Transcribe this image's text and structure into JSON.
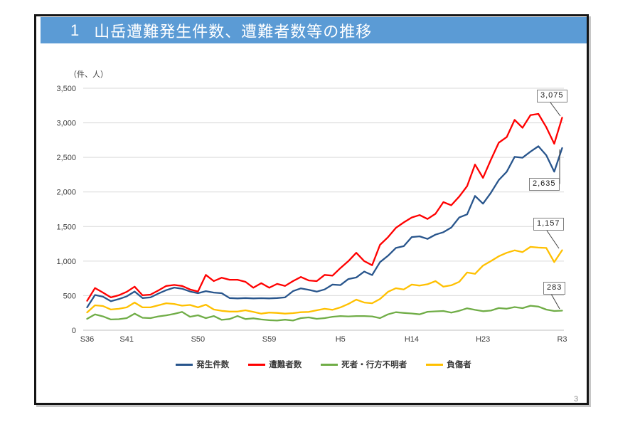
{
  "page": {
    "number": "3"
  },
  "header": {
    "index": "1",
    "title": "山岳遭難発生件数、遭難者数等の推移",
    "bg_color": "#5B9BD5",
    "text_color": "#FFFFFF"
  },
  "chart_data": {
    "type": "line",
    "title": "山岳遭難発生件数、遭難者数等の推移",
    "unit_label": "（件、人）",
    "xlabel": "",
    "ylabel": "件・人",
    "ylim": [
      0,
      3500
    ],
    "ytick_step": 500,
    "ytick_labels": [
      "0",
      "500",
      "1,000",
      "1,500",
      "2,000",
      "2,500",
      "3,000",
      "3,500"
    ],
    "grid": true,
    "legend_position": "bottom",
    "x_years": {
      "start": 1961,
      "end": 2021,
      "count": 61
    },
    "xticks": [
      {
        "label": "S36",
        "index": 0
      },
      {
        "label": "S41",
        "index": 5
      },
      {
        "label": "S50",
        "index": 14
      },
      {
        "label": "S59",
        "index": 23
      },
      {
        "label": "H5",
        "index": 32
      },
      {
        "label": "H14",
        "index": 41
      },
      {
        "label": "H23",
        "index": 50
      },
      {
        "label": "R3",
        "index": 60
      }
    ],
    "series": [
      {
        "key": "incidents",
        "name": "発生件数",
        "color": "#28558C",
        "values": [
          330,
          510,
          485,
          420,
          450,
          490,
          560,
          465,
          475,
          530,
          580,
          617,
          600,
          560,
          535,
          565,
          545,
          535,
          465,
          460,
          465,
          460,
          463,
          460,
          465,
          475,
          565,
          605,
          585,
          558,
          590,
          660,
          653,
          740,
          763,
          848,
          798,
          985,
          1077,
          1190,
          1216,
          1348,
          1358,
          1321,
          1382,
          1417,
          1484,
          1631,
          1676,
          1942,
          1830,
          1988,
          2172,
          2293,
          2508,
          2495,
          2583,
          2661,
          2531,
          2294,
          2635
        ]
      },
      {
        "key": "victims",
        "name": "遭難者数",
        "color": "#FF0000",
        "values": [
          425,
          610,
          545,
          475,
          505,
          555,
          630,
          505,
          515,
          575,
          640,
          655,
          640,
          590,
          560,
          800,
          710,
          760,
          730,
          730,
          700,
          615,
          680,
          615,
          670,
          640,
          710,
          770,
          720,
          710,
          800,
          790,
          900,
          1000,
          1120,
          1000,
          940,
          1235,
          1345,
          1480,
          1560,
          1631,
          1666,
          1609,
          1684,
          1853,
          1808,
          1933,
          2085,
          2396,
          2204,
          2465,
          2713,
          2794,
          3043,
          2929,
          3111,
          3129,
          2937,
          2697,
          3075
        ]
      },
      {
        "key": "deaths-missing",
        "name": "死者・行方不明者",
        "color": "#70AD47",
        "values": [
          165,
          230,
          200,
          155,
          160,
          175,
          240,
          180,
          175,
          200,
          215,
          237,
          265,
          195,
          216,
          175,
          205,
          150,
          162,
          205,
          162,
          172,
          155,
          145,
          140,
          152,
          140,
          175,
          185,
          165,
          175,
          195,
          205,
          200,
          205,
          205,
          200,
          175,
          230,
          260,
          250,
          242,
          230,
          267,
          273,
          278,
          254,
          281,
          317,
          294,
          275,
          284,
          320,
          311,
          335,
          319,
          354,
          342,
          299,
          278,
          283
        ]
      },
      {
        "key": "injured",
        "name": "負傷者",
        "color": "#FFC000",
        "values": [
          257,
          360,
          350,
          300,
          310,
          330,
          400,
          330,
          330,
          360,
          390,
          380,
          355,
          365,
          330,
          370,
          300,
          280,
          270,
          270,
          288,
          265,
          240,
          255,
          250,
          240,
          247,
          260,
          265,
          288,
          310,
          295,
          330,
          380,
          443,
          400,
          390,
          452,
          555,
          607,
          590,
          660,
          645,
          665,
          710,
          630,
          650,
          700,
          835,
          815,
          935,
          1000,
          1070,
          1120,
          1155,
          1130,
          1205,
          1195,
          1190,
          985,
          1157
        ]
      }
    ],
    "end_labels": [
      {
        "key": "victims",
        "series": "遭難者数",
        "value": "3,075"
      },
      {
        "key": "incidents",
        "series": "発生件数",
        "value": "2,635"
      },
      {
        "key": "injured",
        "series": "負傷者",
        "value": "1,157"
      },
      {
        "key": "deaths-missing",
        "series": "死者・行方不明者",
        "value": "283"
      }
    ]
  }
}
